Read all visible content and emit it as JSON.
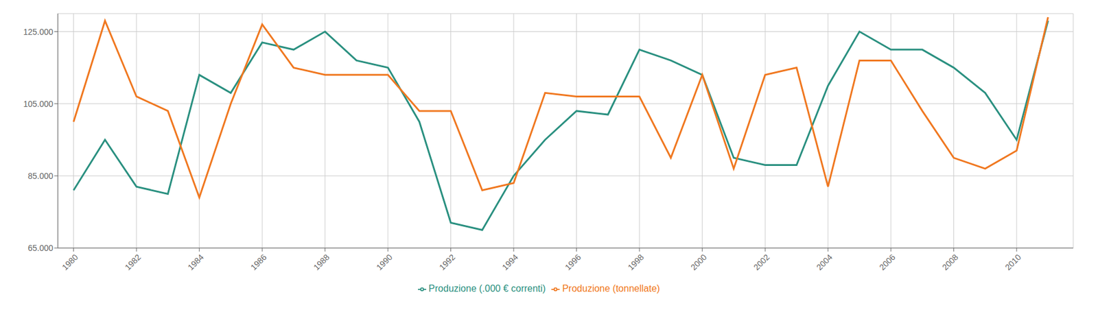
{
  "chart_data": {
    "type": "line",
    "x": [
      1980,
      1981,
      1982,
      1983,
      1984,
      1985,
      1986,
      1987,
      1988,
      1989,
      1990,
      1991,
      1992,
      1993,
      1994,
      1995,
      1996,
      1997,
      1998,
      1999,
      2000,
      2001,
      2002,
      2003,
      2004,
      2005,
      2006,
      2007,
      2008,
      2009,
      2010,
      2011
    ],
    "series": [
      {
        "name": "Produzione (.000 € correnti)",
        "color": "#2a9080",
        "values": [
          81000,
          95000,
          82000,
          80000,
          113000,
          108000,
          122000,
          120000,
          125000,
          117000,
          115000,
          100000,
          72000,
          70000,
          85000,
          95000,
          103000,
          102000,
          120000,
          117000,
          113000,
          90000,
          88000,
          88000,
          110000,
          125000,
          120000,
          120000,
          115000,
          108000,
          95000,
          128000
        ]
      },
      {
        "name": "Produzione (tonnellate)",
        "color": "#f07820",
        "values": [
          100000,
          128000,
          107000,
          103000,
          79000,
          105000,
          127000,
          115000,
          113000,
          113000,
          113000,
          103000,
          103000,
          81000,
          83000,
          108000,
          107000,
          107000,
          107000,
          90000,
          113000,
          87000,
          113000,
          115000,
          82000,
          117000,
          117000,
          103000,
          90000,
          87000,
          92000,
          129000
        ]
      }
    ],
    "xlim": [
      1979.5,
      2011.8
    ],
    "xticks": [
      1980,
      1982,
      1984,
      1986,
      1988,
      1990,
      1992,
      1994,
      1996,
      1998,
      2000,
      2002,
      2004,
      2006,
      2008,
      2010
    ],
    "ylim": [
      65000,
      130000
    ],
    "yticks": [
      {
        "value": 65000,
        "label": "65.000"
      },
      {
        "value": 85000,
        "label": "85.000"
      },
      {
        "value": 105000,
        "label": "105.000"
      },
      {
        "value": 125000,
        "label": "125.000"
      }
    ],
    "grid": true,
    "legend": "bottom"
  }
}
